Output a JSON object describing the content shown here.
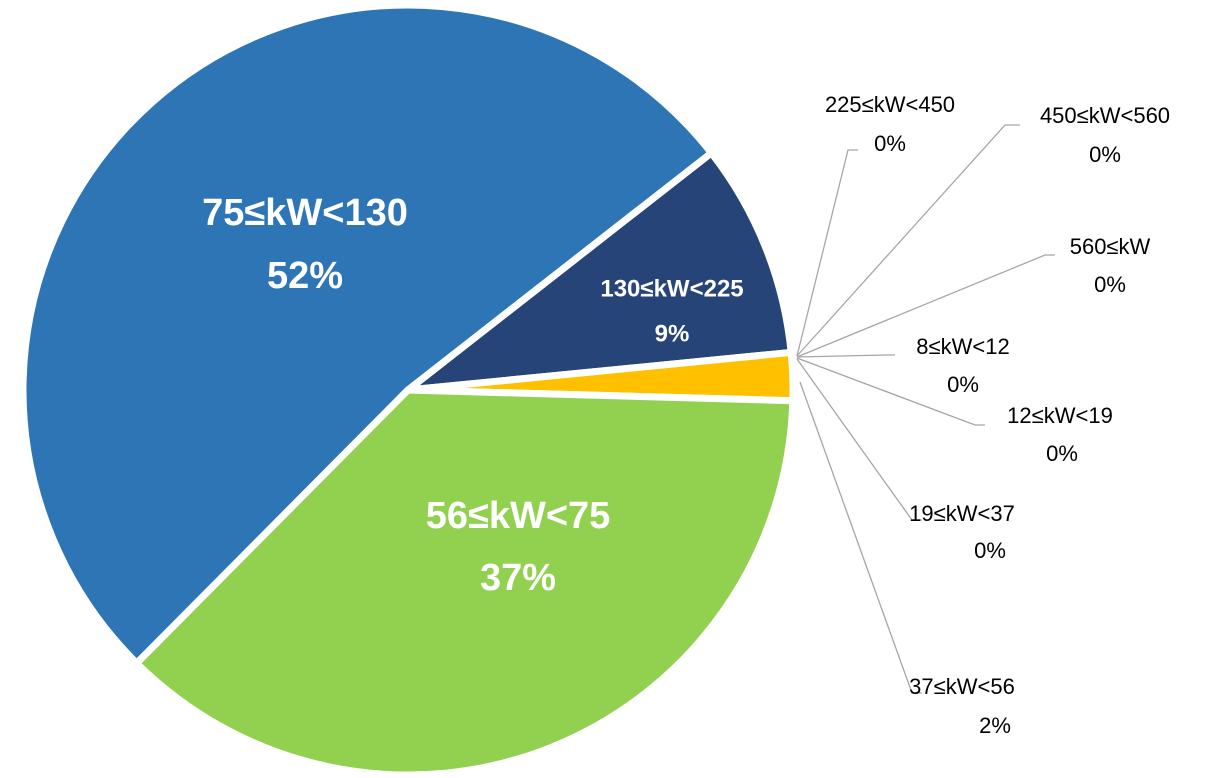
{
  "chart_data": {
    "type": "pie",
    "categories": [
      "75≤kW<130",
      "130≤kW<225",
      "225≤kW<450",
      "450≤kW<560",
      "560≤kW",
      "8≤kW<12",
      "12≤kW<19",
      "19≤kW<37",
      "37≤kW<56",
      "56≤kW<75"
    ],
    "values": [
      52,
      9,
      0,
      0,
      0,
      0,
      0,
      0,
      2,
      37
    ],
    "value_labels": [
      "52%",
      "9%",
      "0%",
      "0%",
      "0%",
      "0%",
      "0%",
      "0%",
      "2%",
      "37%"
    ],
    "colors": [
      "#2e75b6",
      "#264478",
      "#9e480e",
      "#636363",
      "#997300",
      "#4472c4",
      "#ed7d31",
      "#a5a5a5",
      "#ffc000",
      "#92d050"
    ]
  }
}
